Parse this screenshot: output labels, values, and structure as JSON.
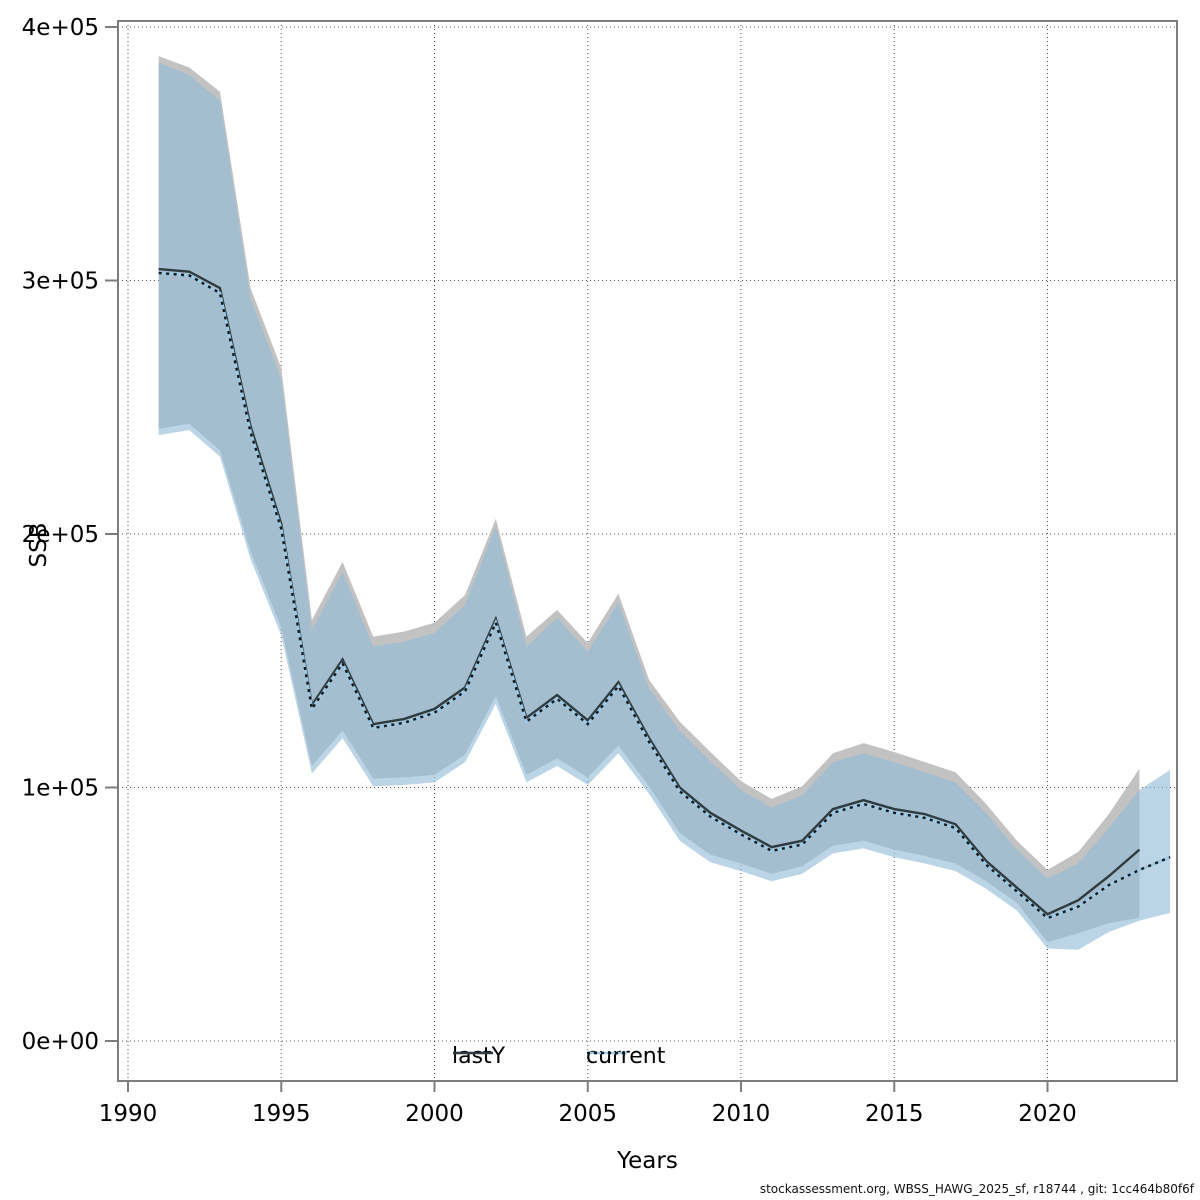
{
  "figure": {
    "footer": "stockassessment.org, WBSS_HAWG_2025_sf, r18744 , git: 1cc464b80f6f"
  },
  "axes": {
    "x": {
      "label": "Years",
      "ticks": [
        1990,
        1995,
        2000,
        2005,
        2010,
        2015,
        2020
      ],
      "tick_labels": [
        "1990",
        "1995",
        "2000",
        "2005",
        "2010",
        "2015",
        "2020"
      ]
    },
    "y": {
      "label": "SSB",
      "ticks": [
        0,
        100000,
        200000,
        300000,
        400000
      ],
      "tick_labels": [
        "0e+00",
        "1e+05",
        "2e+05",
        "3e+05",
        "4e+05"
      ]
    }
  },
  "legend": {
    "items": [
      {
        "label": "lastY",
        "line_style": "solid"
      },
      {
        "label": "current",
        "line_style": "dotted"
      }
    ]
  },
  "colors": {
    "lastY_band": "#c2c2c2",
    "lastY_line": "#2e3b40",
    "current_band": "#92bcd8",
    "current_band_opacity": "0.62",
    "current_line_dash": "#10191f",
    "current_line_under": "#9fc9e3",
    "grid": "#4d4d4d",
    "frame": "#7d7d7d",
    "text": "#000000"
  },
  "chart_data": {
    "type": "line",
    "title": "",
    "xlabel": "Years",
    "ylabel": "SSB",
    "xlim": [
      1989.6,
      2024.5
    ],
    "ylim": [
      0,
      400000
    ],
    "grid": true,
    "legend_position": "bottom-center",
    "series": [
      {
        "name": "lastY",
        "style": "solid",
        "band": true,
        "x": [
          1991,
          1992,
          1993,
          1994,
          1995,
          1996,
          1997,
          1998,
          1999,
          2000,
          2001,
          2002,
          2003,
          2004,
          2005,
          2006,
          2007,
          2008,
          2009,
          2010,
          2011,
          2012,
          2013,
          2014,
          2015,
          2016,
          2017,
          2018,
          2019,
          2020,
          2021,
          2022,
          2023
        ],
        "values": [
          304500,
          303500,
          297000,
          242500,
          204000,
          132500,
          150500,
          125000,
          127000,
          131000,
          139500,
          166500,
          127500,
          136500,
          126500,
          141500,
          119500,
          100000,
          90000,
          83000,
          76500,
          79000,
          91500,
          95000,
          91500,
          89500,
          85500,
          71000,
          60500,
          50000,
          55500,
          65000,
          75500
        ],
        "upper": [
          388500,
          384000,
          374500,
          297000,
          265500,
          166000,
          189000,
          159500,
          161500,
          165000,
          176000,
          206000,
          159500,
          170000,
          157000,
          176500,
          142500,
          126000,
          114000,
          102500,
          95500,
          100500,
          113500,
          117500,
          114000,
          110000,
          106000,
          93500,
          79000,
          67500,
          74500,
          89500,
          107500
        ],
        "lower": [
          241500,
          243500,
          233000,
          193000,
          163000,
          108500,
          122500,
          103500,
          104000,
          105000,
          113000,
          136000,
          105000,
          111500,
          104000,
          116500,
          100500,
          82000,
          73500,
          70000,
          66000,
          69000,
          77000,
          79000,
          75500,
          73000,
          70000,
          63000,
          54500,
          39000,
          42500,
          46500,
          48500
        ]
      },
      {
        "name": "current",
        "style": "dotted",
        "band": true,
        "x": [
          1991,
          1992,
          1993,
          1994,
          1995,
          1996,
          1997,
          1998,
          1999,
          2000,
          2001,
          2002,
          2003,
          2004,
          2005,
          2006,
          2007,
          2008,
          2009,
          2010,
          2011,
          2012,
          2013,
          2014,
          2015,
          2016,
          2017,
          2018,
          2019,
          2020,
          2021,
          2022,
          2023,
          2024
        ],
        "values": [
          303000,
          302000,
          295000,
          240000,
          202000,
          131000,
          149000,
          123500,
          125500,
          129500,
          138000,
          165000,
          126000,
          135000,
          125000,
          140000,
          118000,
          98500,
          88500,
          81500,
          75000,
          77500,
          90000,
          93500,
          90000,
          88000,
          84000,
          69500,
          59000,
          48500,
          53000,
          61500,
          67500,
          72500
        ],
        "upper": [
          386000,
          381000,
          371000,
          293000,
          261000,
          162000,
          185000,
          155500,
          157500,
          161000,
          172000,
          203000,
          155500,
          167000,
          153500,
          173000,
          139000,
          122500,
          110500,
          99000,
          92000,
          97000,
          110000,
          113500,
          110000,
          106000,
          102000,
          90000,
          75500,
          64000,
          70000,
          84000,
          99000,
          107000
        ],
        "lower": [
          239000,
          241000,
          230500,
          190000,
          160000,
          105500,
          119500,
          100500,
          101000,
          102000,
          110000,
          133000,
          102000,
          108500,
          101000,
          113500,
          97500,
          79000,
          70500,
          67000,
          63000,
          66000,
          74000,
          76000,
          72500,
          70000,
          67000,
          60000,
          51500,
          36500,
          36000,
          43000,
          47500,
          50500
        ]
      }
    ]
  }
}
